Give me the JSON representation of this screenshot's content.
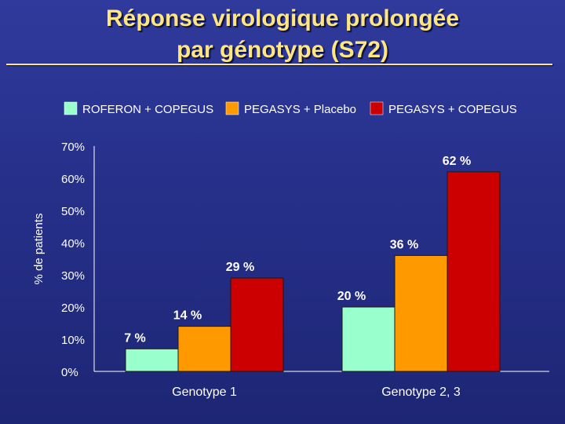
{
  "slide": {
    "title_line_1": "Réponse virologique prolongée",
    "title_line_2": "par génotype (S72)"
  },
  "chart_data": {
    "type": "bar",
    "title": "Réponse virologique prolongée par génotype (S72)",
    "ylabel": "% de patients",
    "xlabel": "",
    "ylim": [
      0,
      70
    ],
    "yticks": [
      "0%",
      "10%",
      "20%",
      "30%",
      "40%",
      "50%",
      "60%",
      "70%"
    ],
    "ytick_values": [
      0,
      10,
      20,
      30,
      40,
      50,
      60,
      70
    ],
    "grid": false,
    "legend_position": "top",
    "categories": [
      "Genotype 1",
      "Genotype 2, 3"
    ],
    "series": [
      {
        "name": "ROFERON + COPEGUS",
        "color": "#99ffcc",
        "values": [
          7,
          20
        ],
        "labels": [
          "7 %",
          "20 %"
        ]
      },
      {
        "name": "PEGASYS + Placebo",
        "color": "#ff9900",
        "values": [
          14,
          36
        ],
        "labels": [
          "14 %",
          "36 %"
        ]
      },
      {
        "name": "PEGASYS + COPEGUS",
        "color": "#cc0000",
        "values": [
          29,
          62
        ],
        "labels": [
          "29 %",
          "62 %"
        ]
      }
    ]
  }
}
